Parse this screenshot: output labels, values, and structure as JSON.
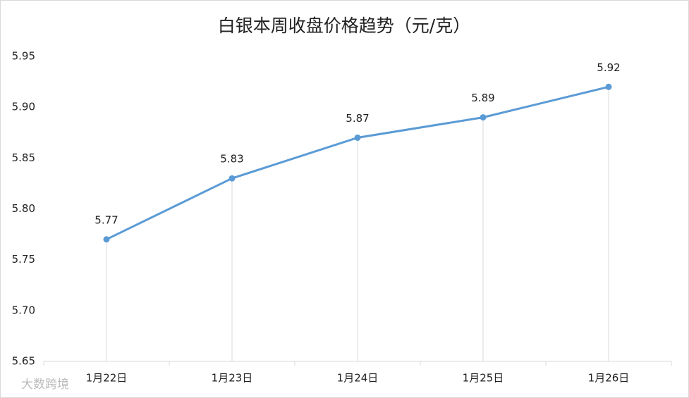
{
  "chart_data": {
    "type": "line",
    "title": "白银本周收盘价格趋势（元/克）",
    "categories": [
      "1月22日",
      "1月23日",
      "1月24日",
      "1月25日",
      "1月26日"
    ],
    "series": [
      {
        "name": "白银",
        "color": "#5b9bd5",
        "values": [
          5.77,
          5.83,
          5.87,
          5.89,
          5.92
        ]
      }
    ],
    "ylim": [
      5.65,
      5.95
    ],
    "yticks": [
      5.65,
      {
        "value": 5.7,
        "label": "5.70"
      },
      5.75,
      {
        "value": 5.8,
        "label": "5.80"
      },
      5.85,
      {
        "value": 5.9,
        "label": "5.90"
      },
      5.95
    ],
    "drop_lines": true,
    "watermark": "大数跨境"
  }
}
